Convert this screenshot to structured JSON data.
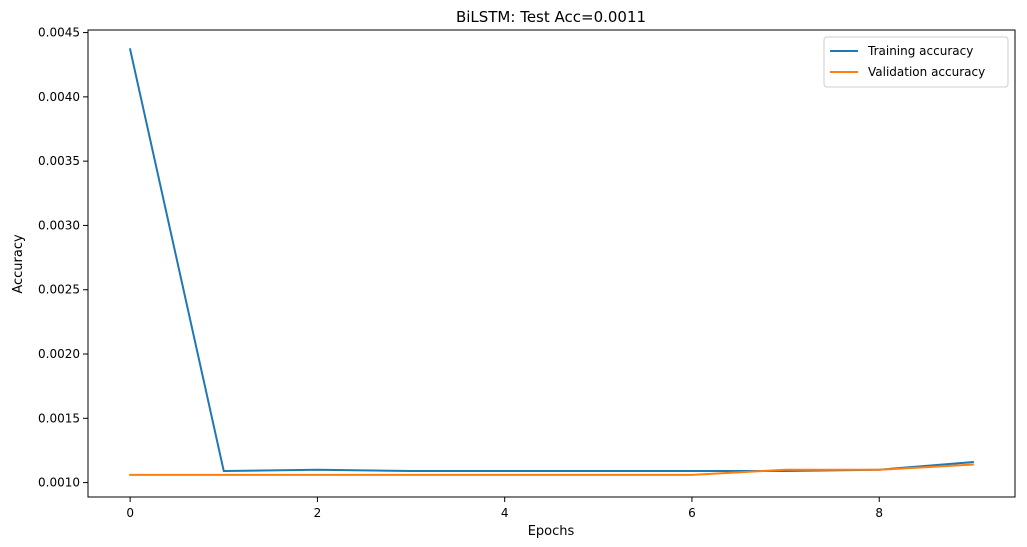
{
  "chart_data": {
    "type": "line",
    "title": "BiLSTM: Test Acc=0.0011",
    "xlabel": "Epochs",
    "ylabel": "Accuracy",
    "x": [
      0,
      1,
      2,
      3,
      4,
      5,
      6,
      7,
      8,
      9
    ],
    "xlim": [
      -0.45,
      9.45
    ],
    "ylim": [
      0.000888,
      0.00452
    ],
    "xticks": [
      0,
      2,
      4,
      6,
      8
    ],
    "xtick_labels": [
      "0",
      "2",
      "4",
      "6",
      "8"
    ],
    "yticks": [
      0.001,
      0.0015,
      0.002,
      0.0025,
      0.003,
      0.0035,
      0.004,
      0.0045
    ],
    "ytick_labels": [
      "0.0010",
      "0.0015",
      "0.0020",
      "0.0025",
      "0.0030",
      "0.0035",
      "0.0040",
      "0.0045"
    ],
    "grid": false,
    "legend_position": "top-right",
    "series": [
      {
        "name": "Training accuracy",
        "color": "#1f77b4",
        "values": [
          0.00437,
          0.00109,
          0.0011,
          0.00109,
          0.00109,
          0.00109,
          0.00109,
          0.00109,
          0.0011,
          0.00116
        ]
      },
      {
        "name": "Validation accuracy",
        "color": "#ff7f0e",
        "values": [
          0.00106,
          0.00106,
          0.00106,
          0.00106,
          0.00106,
          0.00106,
          0.00106,
          0.0011,
          0.0011,
          0.00114
        ]
      }
    ]
  }
}
